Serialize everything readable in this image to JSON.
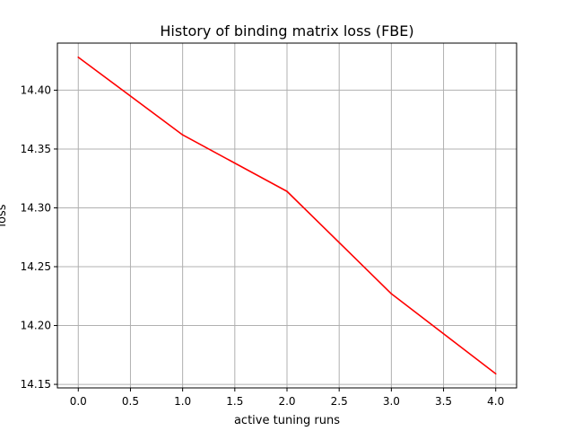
{
  "chart_data": {
    "type": "line",
    "title": "History of binding matrix loss (FBE)",
    "xlabel": "active tuning runs",
    "ylabel": "loss",
    "x": [
      0,
      1,
      2,
      3,
      4
    ],
    "series": [
      {
        "values": [
          14.428,
          14.362,
          14.314,
          14.227,
          14.159
        ],
        "color": "#ff0000"
      }
    ],
    "xlim": [
      -0.2,
      4.2
    ],
    "ylim": [
      14.147,
      14.44
    ],
    "xticks": [
      0.0,
      0.5,
      1.0,
      1.5,
      2.0,
      2.5,
      3.0,
      3.5,
      4.0
    ],
    "xtick_labels": [
      "0.0",
      "0.5",
      "1.0",
      "1.5",
      "2.0",
      "2.5",
      "3.0",
      "3.5",
      "4.0"
    ],
    "yticks": [
      14.15,
      14.2,
      14.25,
      14.3,
      14.35,
      14.4
    ],
    "ytick_labels": [
      "14.15",
      "14.20",
      "14.25",
      "14.30",
      "14.35",
      "14.40"
    ],
    "grid": true,
    "legend": "none"
  }
}
